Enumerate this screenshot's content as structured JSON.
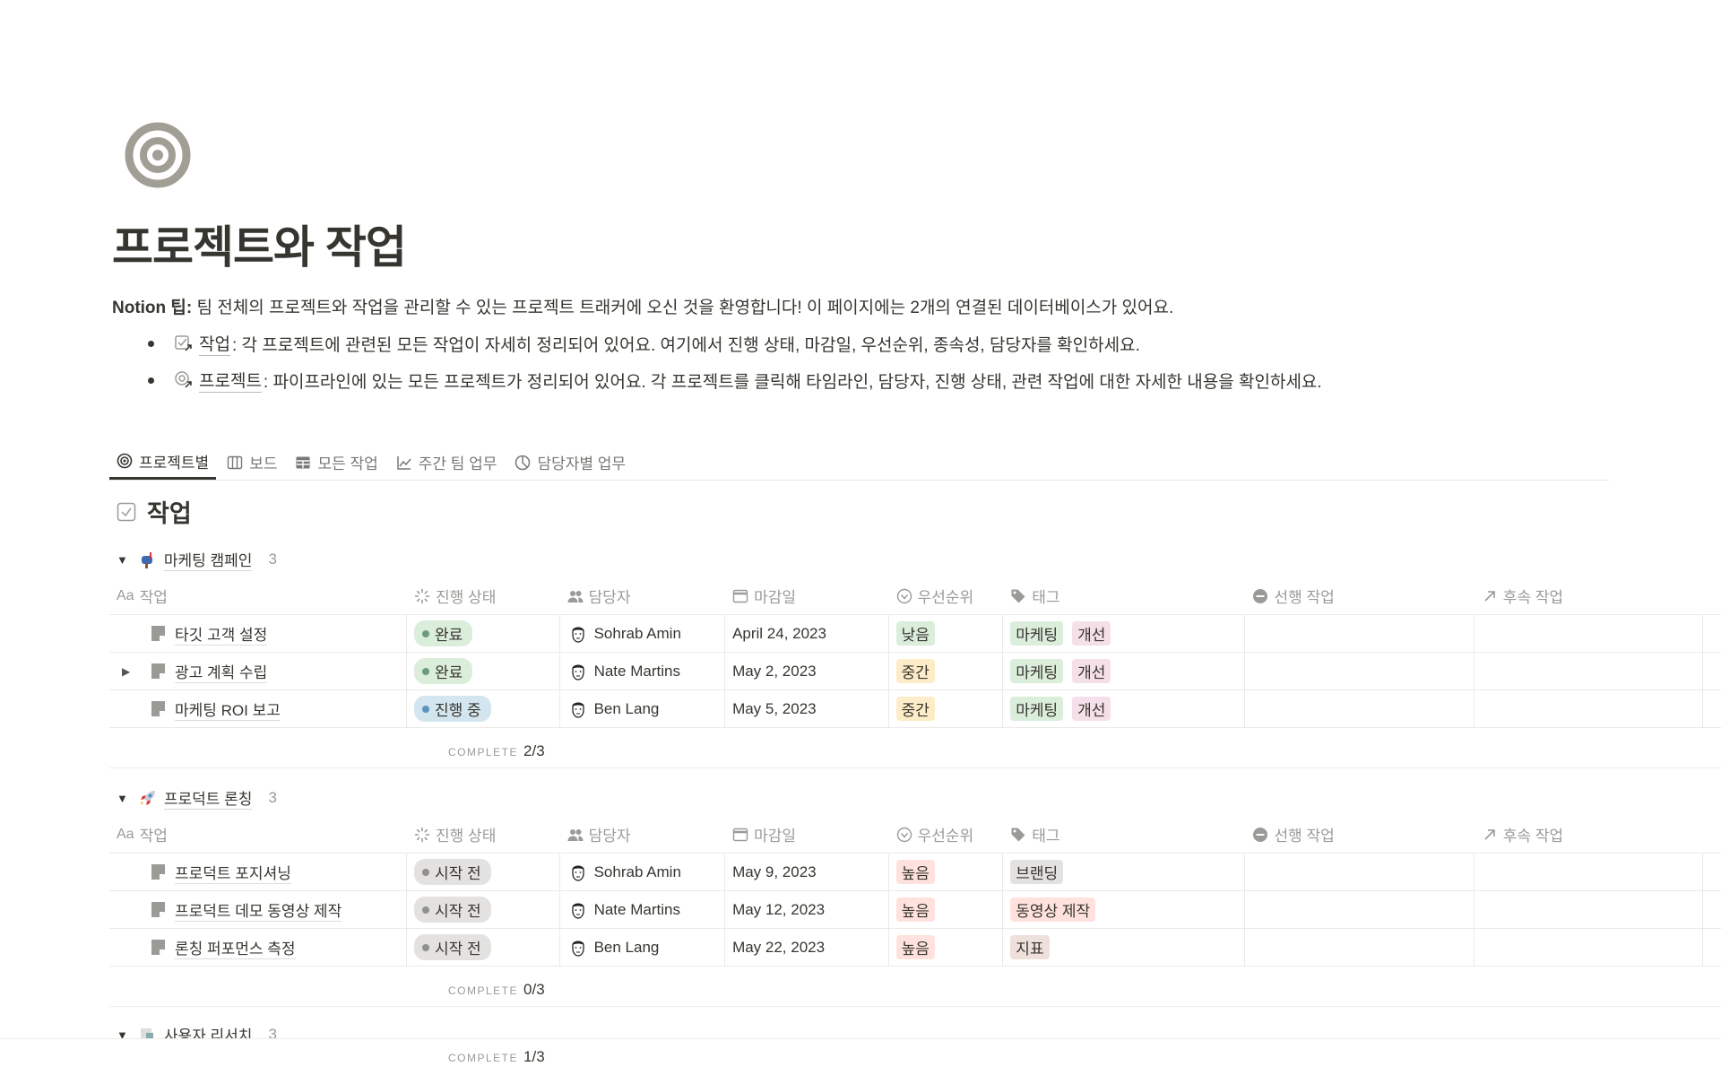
{
  "page": {
    "title": "프로젝트와 작업",
    "tip_label": "Notion 팁:",
    "tip_text": " 팀 전체의 프로젝트와 작업을 관리할 수 있는 프로젝트 트래커에 오신 것을 환영합니다! 이 페이지에는 2개의 연결된 데이터베이스가 있어요.",
    "bullets": [
      {
        "icon": "checklist-arrow-icon",
        "link": "작업",
        "text": ": 각 프로젝트에 관련된 모든 작업이 자세히 정리되어 있어요. 여기에서 진행 상태, 마감일, 우선순위, 종속성, 담당자를 확인하세요."
      },
      {
        "icon": "target-arrow-icon",
        "link": "프로젝트",
        "text": ": 파이프라인에 있는 모든 프로젝트가 정리되어 있어요. 각 프로젝트를 클릭해 타임라인, 담당자, 진행 상태, 관련 작업에 대한 자세한 내용을 확인하세요."
      }
    ]
  },
  "tabs": [
    {
      "label": "프로젝트별",
      "icon": "target-icon",
      "active": true
    },
    {
      "label": "보드",
      "icon": "board-icon"
    },
    {
      "label": "모든 작업",
      "icon": "table-icon"
    },
    {
      "label": "주간 팀 업무",
      "icon": "chart-line-icon"
    },
    {
      "label": "담당자별 업무",
      "icon": "pie-chart-icon"
    }
  ],
  "database": {
    "title": "작업"
  },
  "columns": [
    "작업",
    "진행 상태",
    "담당자",
    "마감일",
    "우선순위",
    "태그",
    "선행 작업",
    "후속 작업"
  ],
  "column_prefix": "Aa",
  "complete_label": "COMPLETE",
  "groups": [
    {
      "name": "마케팅 캠페인",
      "count": "3",
      "complete": "2/3",
      "rows": [
        {
          "task": "타깃 고객 설정",
          "status": "완료",
          "assignee": "Sohrab Amin",
          "due": "April 24, 2023",
          "priority": "낮음",
          "tags": [
            "마케팅",
            "개선"
          ],
          "expandable": false
        },
        {
          "task": "광고 계획 수립",
          "status": "완료",
          "assignee": "Nate Martins",
          "due": "May 2, 2023",
          "priority": "중간",
          "tags": [
            "마케팅",
            "개선"
          ],
          "expandable": true
        },
        {
          "task": "마케팅 ROI 보고",
          "status": "진행 중",
          "assignee": "Ben Lang",
          "due": "May 5, 2023",
          "priority": "중간",
          "tags": [
            "마케팅",
            "개선"
          ],
          "expandable": false
        }
      ]
    },
    {
      "name": "프로덕트 론칭",
      "count": "3",
      "complete": "0/3",
      "rows": [
        {
          "task": "프로덕트 포지셔닝",
          "status": "시작 전",
          "assignee": "Sohrab Amin",
          "due": "May 9, 2023",
          "priority": "높음",
          "tags": [
            "브랜딩"
          ],
          "expandable": false
        },
        {
          "task": "프로덕트 데모 동영상 제작",
          "status": "시작 전",
          "assignee": "Nate Martins",
          "due": "May 12, 2023",
          "priority": "높음",
          "tags": [
            "동영상 제작"
          ],
          "expandable": false
        },
        {
          "task": "론칭 퍼포먼스 측정",
          "status": "시작 전",
          "assignee": "Ben Lang",
          "due": "May 22, 2023",
          "priority": "높음",
          "tags": [
            "지표"
          ],
          "expandable": false
        }
      ]
    },
    {
      "name": "사용자 리서치",
      "count": "3",
      "complete": "1/3"
    }
  ],
  "colors": {
    "status": {
      "완료": [
        "#dbeddb",
        "#6c9b7d"
      ],
      "진행 중": [
        "#d3e5ef",
        "#5b97bd"
      ],
      "시작 전": [
        "#e3e2e0",
        "#91918e"
      ]
    },
    "priority": {
      "낮음": "#dbeddb",
      "중간": "#fdecc8",
      "높음": "#ffe2dd"
    },
    "tags": {
      "마케팅": "#dbeddb",
      "개선": "#f5e0e9",
      "브랜딩": "#e3e2e0",
      "동영상 제작": "#ffe2dd",
      "지표": "#eee0da"
    }
  }
}
